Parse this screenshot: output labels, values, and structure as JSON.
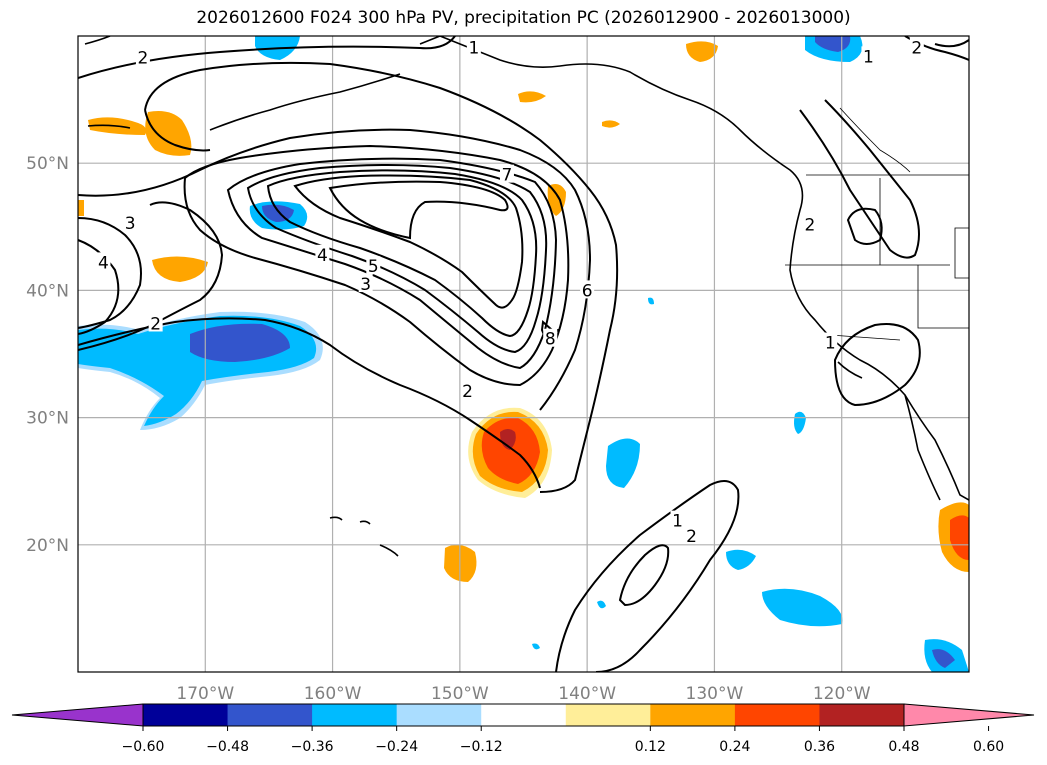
{
  "title": "2026012600 F024 300 hPa PV, precipitation PC (2026012900 - 2026013000)",
  "map": {
    "lon_range": [
      -180,
      -110
    ],
    "lat_range": [
      10,
      60
    ],
    "lon_ticks": [
      {
        "value": -170,
        "label": "170°W"
      },
      {
        "value": -160,
        "label": "160°W"
      },
      {
        "value": -150,
        "label": "150°W"
      },
      {
        "value": -140,
        "label": "140°W"
      },
      {
        "value": -130,
        "label": "130°W"
      },
      {
        "value": -120,
        "label": "120°W"
      }
    ],
    "lat_ticks": [
      {
        "value": 50,
        "label": "50°N"
      },
      {
        "value": 40,
        "label": "40°N"
      },
      {
        "value": 30,
        "label": "30°N"
      },
      {
        "value": 20,
        "label": "20°N"
      }
    ],
    "contour_labels": [
      {
        "text": "2",
        "lon": -174.9,
        "lat": 58.3
      },
      {
        "text": "1",
        "lon": -148.9,
        "lat": 59.1
      },
      {
        "text": "1",
        "lon": -117.9,
        "lat": 58.4
      },
      {
        "text": "2",
        "lon": -114.1,
        "lat": 59.1
      },
      {
        "text": "3",
        "lon": -175.9,
        "lat": 45.3
      },
      {
        "text": "4",
        "lon": -178.0,
        "lat": 42.2
      },
      {
        "text": "2",
        "lon": -173.9,
        "lat": 37.4
      },
      {
        "text": "7",
        "lon": -146.3,
        "lat": 49.1
      },
      {
        "text": "4",
        "lon": -160.8,
        "lat": 42.8
      },
      {
        "text": "5",
        "lon": -156.8,
        "lat": 41.9
      },
      {
        "text": "3",
        "lon": -157.4,
        "lat": 40.5
      },
      {
        "text": "6",
        "lon": -140.0,
        "lat": 40.0
      },
      {
        "text": "8",
        "lon": -142.9,
        "lat": 36.2
      },
      {
        "text": "2",
        "lon": -149.4,
        "lat": 32.1
      },
      {
        "text": "1",
        "lon": -120.9,
        "lat": 35.9
      },
      {
        "text": "2",
        "lon": -122.5,
        "lat": 45.2
      },
      {
        "text": "1",
        "lon": -132.9,
        "lat": 21.9
      },
      {
        "text": "2",
        "lon": -131.8,
        "lat": 20.7
      }
    ]
  },
  "colorbar": {
    "levels": [
      "−0.60",
      "−0.48",
      "−0.36",
      "−0.24",
      "−0.12",
      "0.12",
      "0.24",
      "0.36",
      "0.48",
      "0.60"
    ],
    "colors": [
      "#9933cc",
      "#000099",
      "#3355cc",
      "#00bbff",
      "#aaddff",
      "#ffffff",
      "#ffee99",
      "#ffa500",
      "#ff4500",
      "#b22222",
      "#ff88aa"
    ]
  }
}
